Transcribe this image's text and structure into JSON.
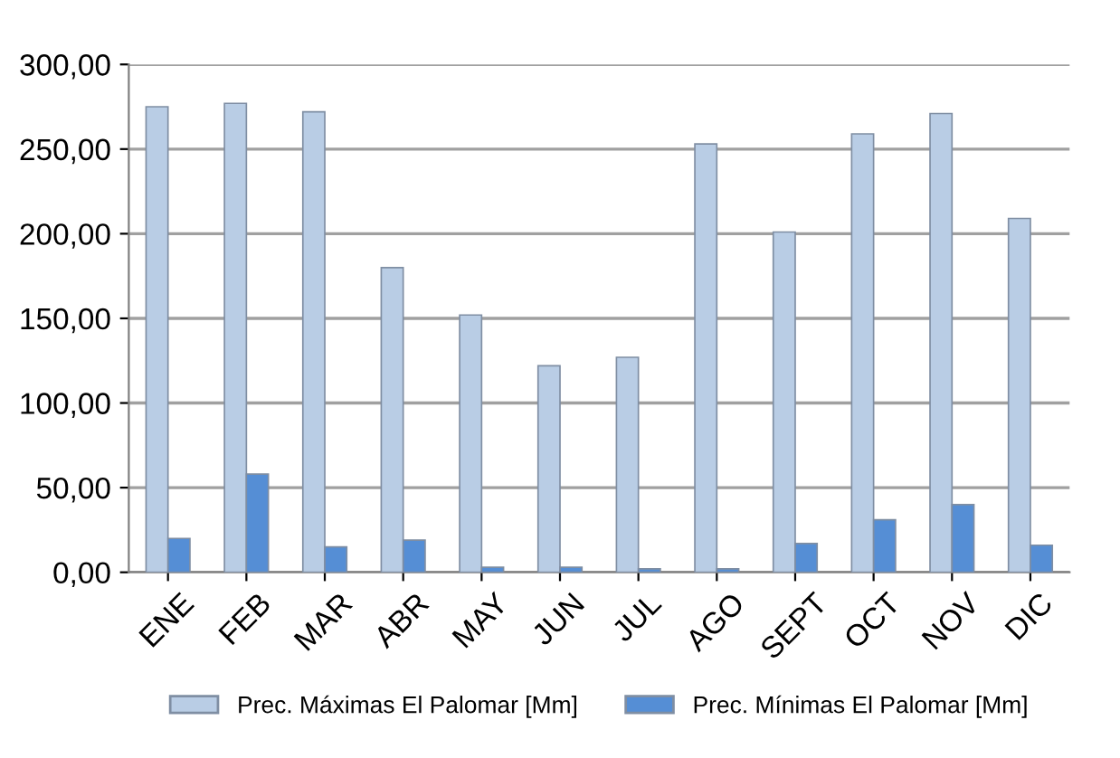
{
  "chart_data": {
    "type": "bar",
    "categories": [
      "ENE",
      "FEB",
      "MAR",
      "ABR",
      "MAY",
      "JUN",
      "JUL",
      "AGO",
      "SEPT",
      "OCT",
      "NOV",
      "DIC"
    ],
    "series": [
      {
        "name": "Prec. Máximas El Palomar [Mm]",
        "color": "#b9cde5",
        "values": [
          275,
          277,
          272,
          180,
          152,
          122,
          127,
          253,
          201,
          259,
          271,
          209
        ]
      },
      {
        "name": "Prec. Mínimas El Palomar [Mm]",
        "color": "#558ed5",
        "values": [
          20,
          58,
          15,
          19,
          3,
          3,
          2,
          2,
          17,
          31,
          40,
          16
        ]
      }
    ],
    "ylim": [
      0,
      300
    ],
    "yticks": [
      {
        "value": 0,
        "label": "0,00"
      },
      {
        "value": 50,
        "label": "50,00"
      },
      {
        "value": 100,
        "label": "100,00"
      },
      {
        "value": 150,
        "label": "150,00"
      },
      {
        "value": 200,
        "label": "200,00"
      },
      {
        "value": 250,
        "label": "250,00"
      },
      {
        "value": 300,
        "label": "300,00"
      }
    ],
    "grid": "y",
    "legend": "bottom"
  }
}
